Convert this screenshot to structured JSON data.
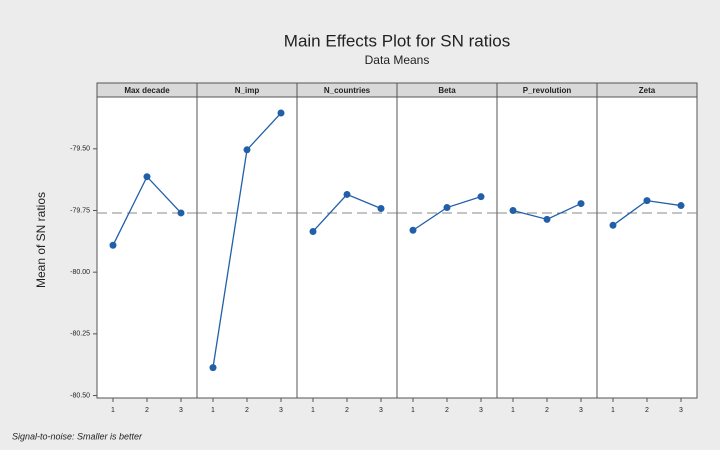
{
  "chart_data": {
    "type": "line",
    "title": "Main Effects Plot for SN ratios",
    "subtitle": "Data Means",
    "ylabel": "Mean of SN ratios",
    "footnote": "Signal-to-noise: Smaller is better",
    "categories": [
      "1",
      "2",
      "3"
    ],
    "color": "#2160a8",
    "panels": [
      {
        "name": "Max decade",
        "values": [
          -79.891,
          -79.613,
          -79.76
        ]
      },
      {
        "name": "N_imp",
        "values": [
          -80.387,
          -79.504,
          -79.355
        ]
      },
      {
        "name": "N_countries",
        "values": [
          -79.835,
          -79.685,
          -79.742
        ]
      },
      {
        "name": "Beta",
        "values": [
          -79.83,
          -79.738,
          -79.694
        ]
      },
      {
        "name": "P_revolution",
        "values": [
          -79.75,
          -79.786,
          -79.722
        ]
      },
      {
        "name": "Zeta",
        "values": [
          -79.81,
          -79.71,
          -79.73
        ]
      }
    ],
    "reference_line": -79.76,
    "ylim": [
      -80.51,
      -79.29
    ],
    "yticks": [
      {
        "value": -79.5,
        "label": "-79.50"
      },
      {
        "value": -79.75,
        "label": "-79.75"
      },
      {
        "value": -80,
        "label": "-80.00"
      },
      {
        "value": -80.25,
        "label": "-80.25"
      },
      {
        "value": -80.5,
        "label": "-80.50"
      }
    ]
  }
}
